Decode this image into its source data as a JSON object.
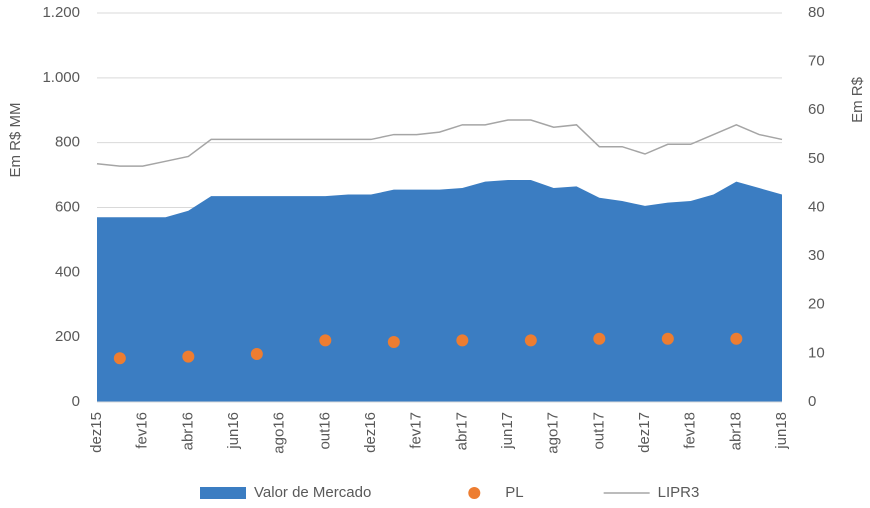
{
  "chart_data": {
    "type": "combo",
    "y_label": "Em R$ MM",
    "y2_label": "Em R$",
    "categories": [
      "dez15",
      null,
      "fev16",
      null,
      "abr16",
      null,
      "jun16",
      null,
      "ago16",
      null,
      "out16",
      null,
      "dez16",
      null,
      "fev17",
      null,
      "abr17",
      null,
      "jun17",
      null,
      "ago17",
      null,
      "out17",
      null,
      "dez17",
      null,
      "fev18",
      null,
      "abr18",
      null,
      "jun18"
    ],
    "series": [
      {
        "name": "Valor de Mercado",
        "type": "area",
        "color": "#3b7dc2",
        "values": [
          570,
          570,
          570,
          570,
          590,
          635,
          635,
          635,
          635,
          635,
          635,
          640,
          640,
          655,
          655,
          655,
          660,
          680,
          685,
          685,
          660,
          665,
          630,
          620,
          605,
          615,
          620,
          640,
          680,
          660,
          640
        ]
      },
      {
        "name": "PL",
        "type": "scatter",
        "color": "#ed7d31",
        "values": [
          null,
          135,
          null,
          null,
          140,
          null,
          null,
          148,
          null,
          null,
          190,
          null,
          null,
          185,
          null,
          null,
          190,
          null,
          null,
          190,
          null,
          null,
          195,
          null,
          null,
          195,
          null,
          null,
          195,
          null,
          null
        ]
      },
      {
        "name": "LIPR3",
        "type": "line",
        "color": "#a5a5a5",
        "axis": "y2",
        "values": [
          49,
          48.5,
          48.5,
          49.5,
          50.5,
          54,
          54,
          54,
          54,
          54,
          54,
          54,
          54,
          55,
          55,
          55.5,
          57,
          57,
          58,
          58,
          56.5,
          57,
          52.5,
          52.5,
          51,
          53,
          53,
          55,
          57,
          55,
          54
        ]
      }
    ],
    "ylim": [
      0,
      1200
    ],
    "yticks": [
      0,
      200,
      400,
      600,
      800,
      {
        "value": 1000,
        "label": "1.000"
      },
      {
        "value": 1200,
        "label": "1.200"
      }
    ],
    "y2lim": [
      0,
      80
    ],
    "y2ticks": [
      0,
      10,
      20,
      30,
      40,
      50,
      60,
      70,
      80
    ],
    "grid": true,
    "legend": "bottom"
  }
}
